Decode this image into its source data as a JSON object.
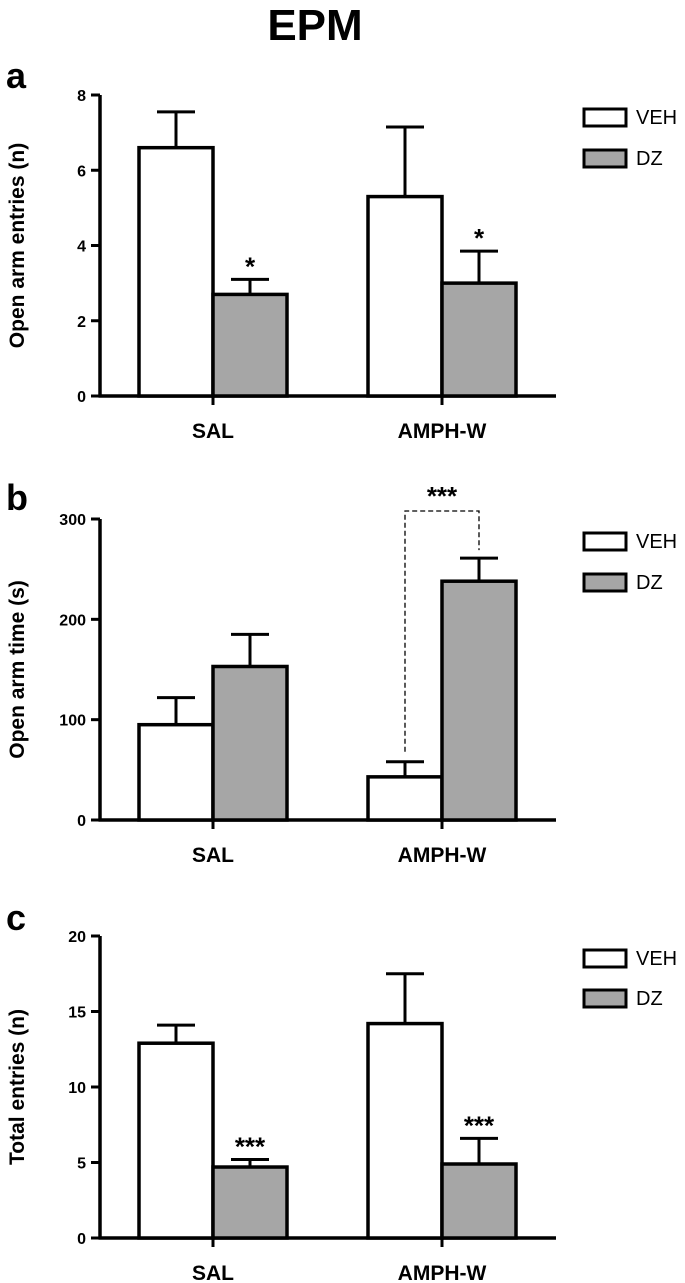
{
  "title": "EPM",
  "colors": {
    "veh": "#ffffff",
    "dz": "#a6a6a6",
    "stroke": "#000000"
  },
  "chart_data": [
    {
      "type": "bar",
      "panel": "a",
      "categories": [
        "SAL",
        "AMPH-W"
      ],
      "ylabel": "Open arm entries (n)",
      "ylim": [
        0,
        8
      ],
      "yticks": [
        0,
        2,
        4,
        6,
        8
      ],
      "legend_position": "top-right",
      "series": [
        {
          "name": "VEH",
          "color": "#ffffff",
          "values": [
            6.6,
            5.3
          ],
          "errors": [
            0.95,
            1.85
          ]
        },
        {
          "name": "DZ",
          "color": "#a6a6a6",
          "values": [
            2.7,
            3.0
          ],
          "errors": [
            0.4,
            0.85
          ]
        }
      ],
      "annotations": [
        {
          "label": "*",
          "series": "DZ",
          "category": "SAL"
        },
        {
          "label": "*",
          "series": "DZ",
          "category": "AMPH-W"
        }
      ]
    },
    {
      "type": "bar",
      "panel": "b",
      "categories": [
        "SAL",
        "AMPH-W"
      ],
      "ylabel": "Open arm time (s)",
      "ylim": [
        0,
        300
      ],
      "yticks": [
        0,
        100,
        200,
        300
      ],
      "legend_position": "top-right",
      "series": [
        {
          "name": "VEH",
          "color": "#ffffff",
          "values": [
            95,
            43
          ],
          "errors": [
            27,
            15
          ]
        },
        {
          "name": "DZ",
          "color": "#a6a6a6",
          "values": [
            153,
            238
          ],
          "errors": [
            32,
            23
          ]
        }
      ],
      "annotations": [
        {
          "label": "***",
          "category": "AMPH-W",
          "type": "bracket"
        }
      ]
    },
    {
      "type": "bar",
      "panel": "c",
      "categories": [
        "SAL",
        "AMPH-W"
      ],
      "ylabel": "Total entries (n)",
      "ylim": [
        0,
        20
      ],
      "yticks": [
        0,
        5,
        10,
        15,
        20
      ],
      "legend_position": "top-right",
      "series": [
        {
          "name": "VEH",
          "color": "#ffffff",
          "values": [
            12.9,
            14.2
          ],
          "errors": [
            1.2,
            3.3
          ]
        },
        {
          "name": "DZ",
          "color": "#a6a6a6",
          "values": [
            4.7,
            4.9
          ],
          "errors": [
            0.5,
            1.7
          ]
        }
      ],
      "annotations": [
        {
          "label": "***",
          "series": "DZ",
          "category": "SAL"
        },
        {
          "label": "***",
          "series": "DZ",
          "category": "AMPH-W"
        }
      ]
    }
  ]
}
